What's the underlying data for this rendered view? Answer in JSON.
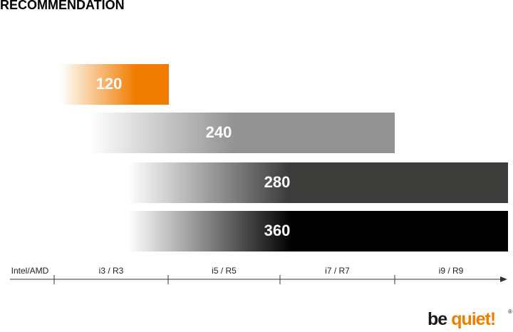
{
  "chart_data": {
    "type": "range-bar",
    "title": "RECOMMENDATION",
    "axis_label": "Intel/AMD",
    "categories": [
      "i3 / R3",
      "i5 / R5",
      "i7 / R7",
      "i9 / R9"
    ],
    "bars": [
      {
        "label": "120",
        "color": "#f07d00"
      },
      {
        "label": "240",
        "color": "#929292"
      },
      {
        "label": "280",
        "color": "#3c3c3b"
      },
      {
        "label": "360",
        "color": "#000000"
      }
    ]
  },
  "logo": {
    "first": "be",
    "second": "quiet!",
    "mark": "®"
  }
}
